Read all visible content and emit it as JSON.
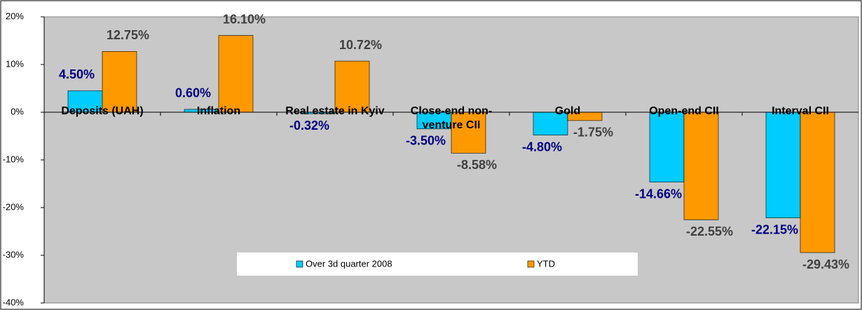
{
  "chart_data": {
    "type": "bar",
    "categories": [
      "Deposits (UAH)",
      "Inflation",
      "Real estate in Kyiv",
      "Close-end non-venture CII",
      "Gold",
      "Open-end CII",
      "Interval CII"
    ],
    "series": [
      {
        "name": "Over 3d quarter 2008",
        "color": "#00ccff",
        "label_color": "#000080",
        "values": [
          4.5,
          0.6,
          -0.32,
          -3.5,
          -4.8,
          -14.66,
          -22.15
        ],
        "value_labels": [
          "4.50%",
          "0.60%",
          "-0.32%",
          "-3.50%",
          "-4.80%",
          "-14.66%",
          "-22.15%"
        ]
      },
      {
        "name": "YTD",
        "color": "#ff9900",
        "label_color": "#404040",
        "values": [
          12.75,
          16.1,
          10.72,
          -8.58,
          -1.75,
          -22.55,
          -29.43
        ],
        "value_labels": [
          "12.75%",
          "16.10%",
          "10.72%",
          "-8.58%",
          "-1.75%",
          "-22.55%",
          "-29.43%"
        ]
      }
    ],
    "ylim": [
      -40,
      20
    ],
    "yticks": [
      {
        "value": -40,
        "label": "-40%"
      },
      {
        "value": -30,
        "label": "-30%"
      },
      {
        "value": -20,
        "label": "-20%"
      },
      {
        "value": -10,
        "label": "-10%"
      },
      {
        "value": 0,
        "label": "0%"
      },
      {
        "value": 10,
        "label": "10%"
      },
      {
        "value": 20,
        "label": "20%"
      }
    ],
    "grid": false,
    "legend": "bottom"
  }
}
